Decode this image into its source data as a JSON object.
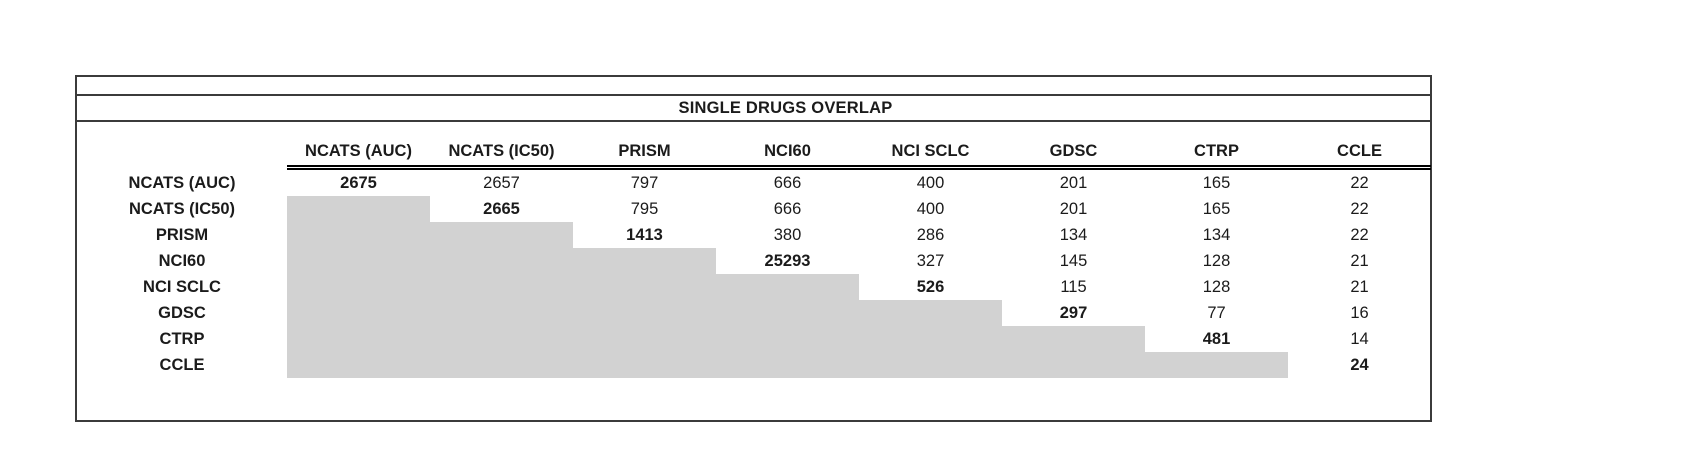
{
  "page": {
    "background": "#ffffff"
  },
  "table": {
    "title": "SINGLE DRUGS OVERLAP",
    "corner_label": "",
    "styles": {
      "shaded_fill": "#d2d2d2",
      "frame_border_color": "#3b3b3b",
      "double_rule_color": "#000000",
      "text_color": "#1b1b1b"
    }
  },
  "chart_data": {
    "type": "table",
    "title": "SINGLE DRUGS OVERLAP",
    "columns": [
      "NCATS (AUC)",
      "NCATS (IC50)",
      "PRISM",
      "NCI60",
      "NCI SCLC",
      "GDSC",
      "CTRP",
      "CCLE"
    ],
    "rows": [
      "NCATS (AUC)",
      "NCATS (IC50)",
      "PRISM",
      "NCI60",
      "NCI SCLC",
      "GDSC",
      "CTRP",
      "CCLE"
    ],
    "matrix": [
      [
        2675,
        2657,
        797,
        666,
        400,
        201,
        165,
        22
      ],
      [
        null,
        2665,
        795,
        666,
        400,
        201,
        165,
        22
      ],
      [
        null,
        null,
        1413,
        380,
        286,
        134,
        134,
        22
      ],
      [
        null,
        null,
        null,
        25293,
        327,
        145,
        128,
        21
      ],
      [
        null,
        null,
        null,
        null,
        526,
        115,
        128,
        21
      ],
      [
        null,
        null,
        null,
        null,
        null,
        297,
        77,
        16
      ],
      [
        null,
        null,
        null,
        null,
        null,
        null,
        481,
        14
      ],
      [
        null,
        null,
        null,
        null,
        null,
        null,
        null,
        24
      ]
    ],
    "layout": {
      "diagonal_bold": true,
      "lower_triangle_shaded": true,
      "lower_triangle_values": "empty",
      "header_rule": "double",
      "legend": "none",
      "grid": "off"
    }
  }
}
